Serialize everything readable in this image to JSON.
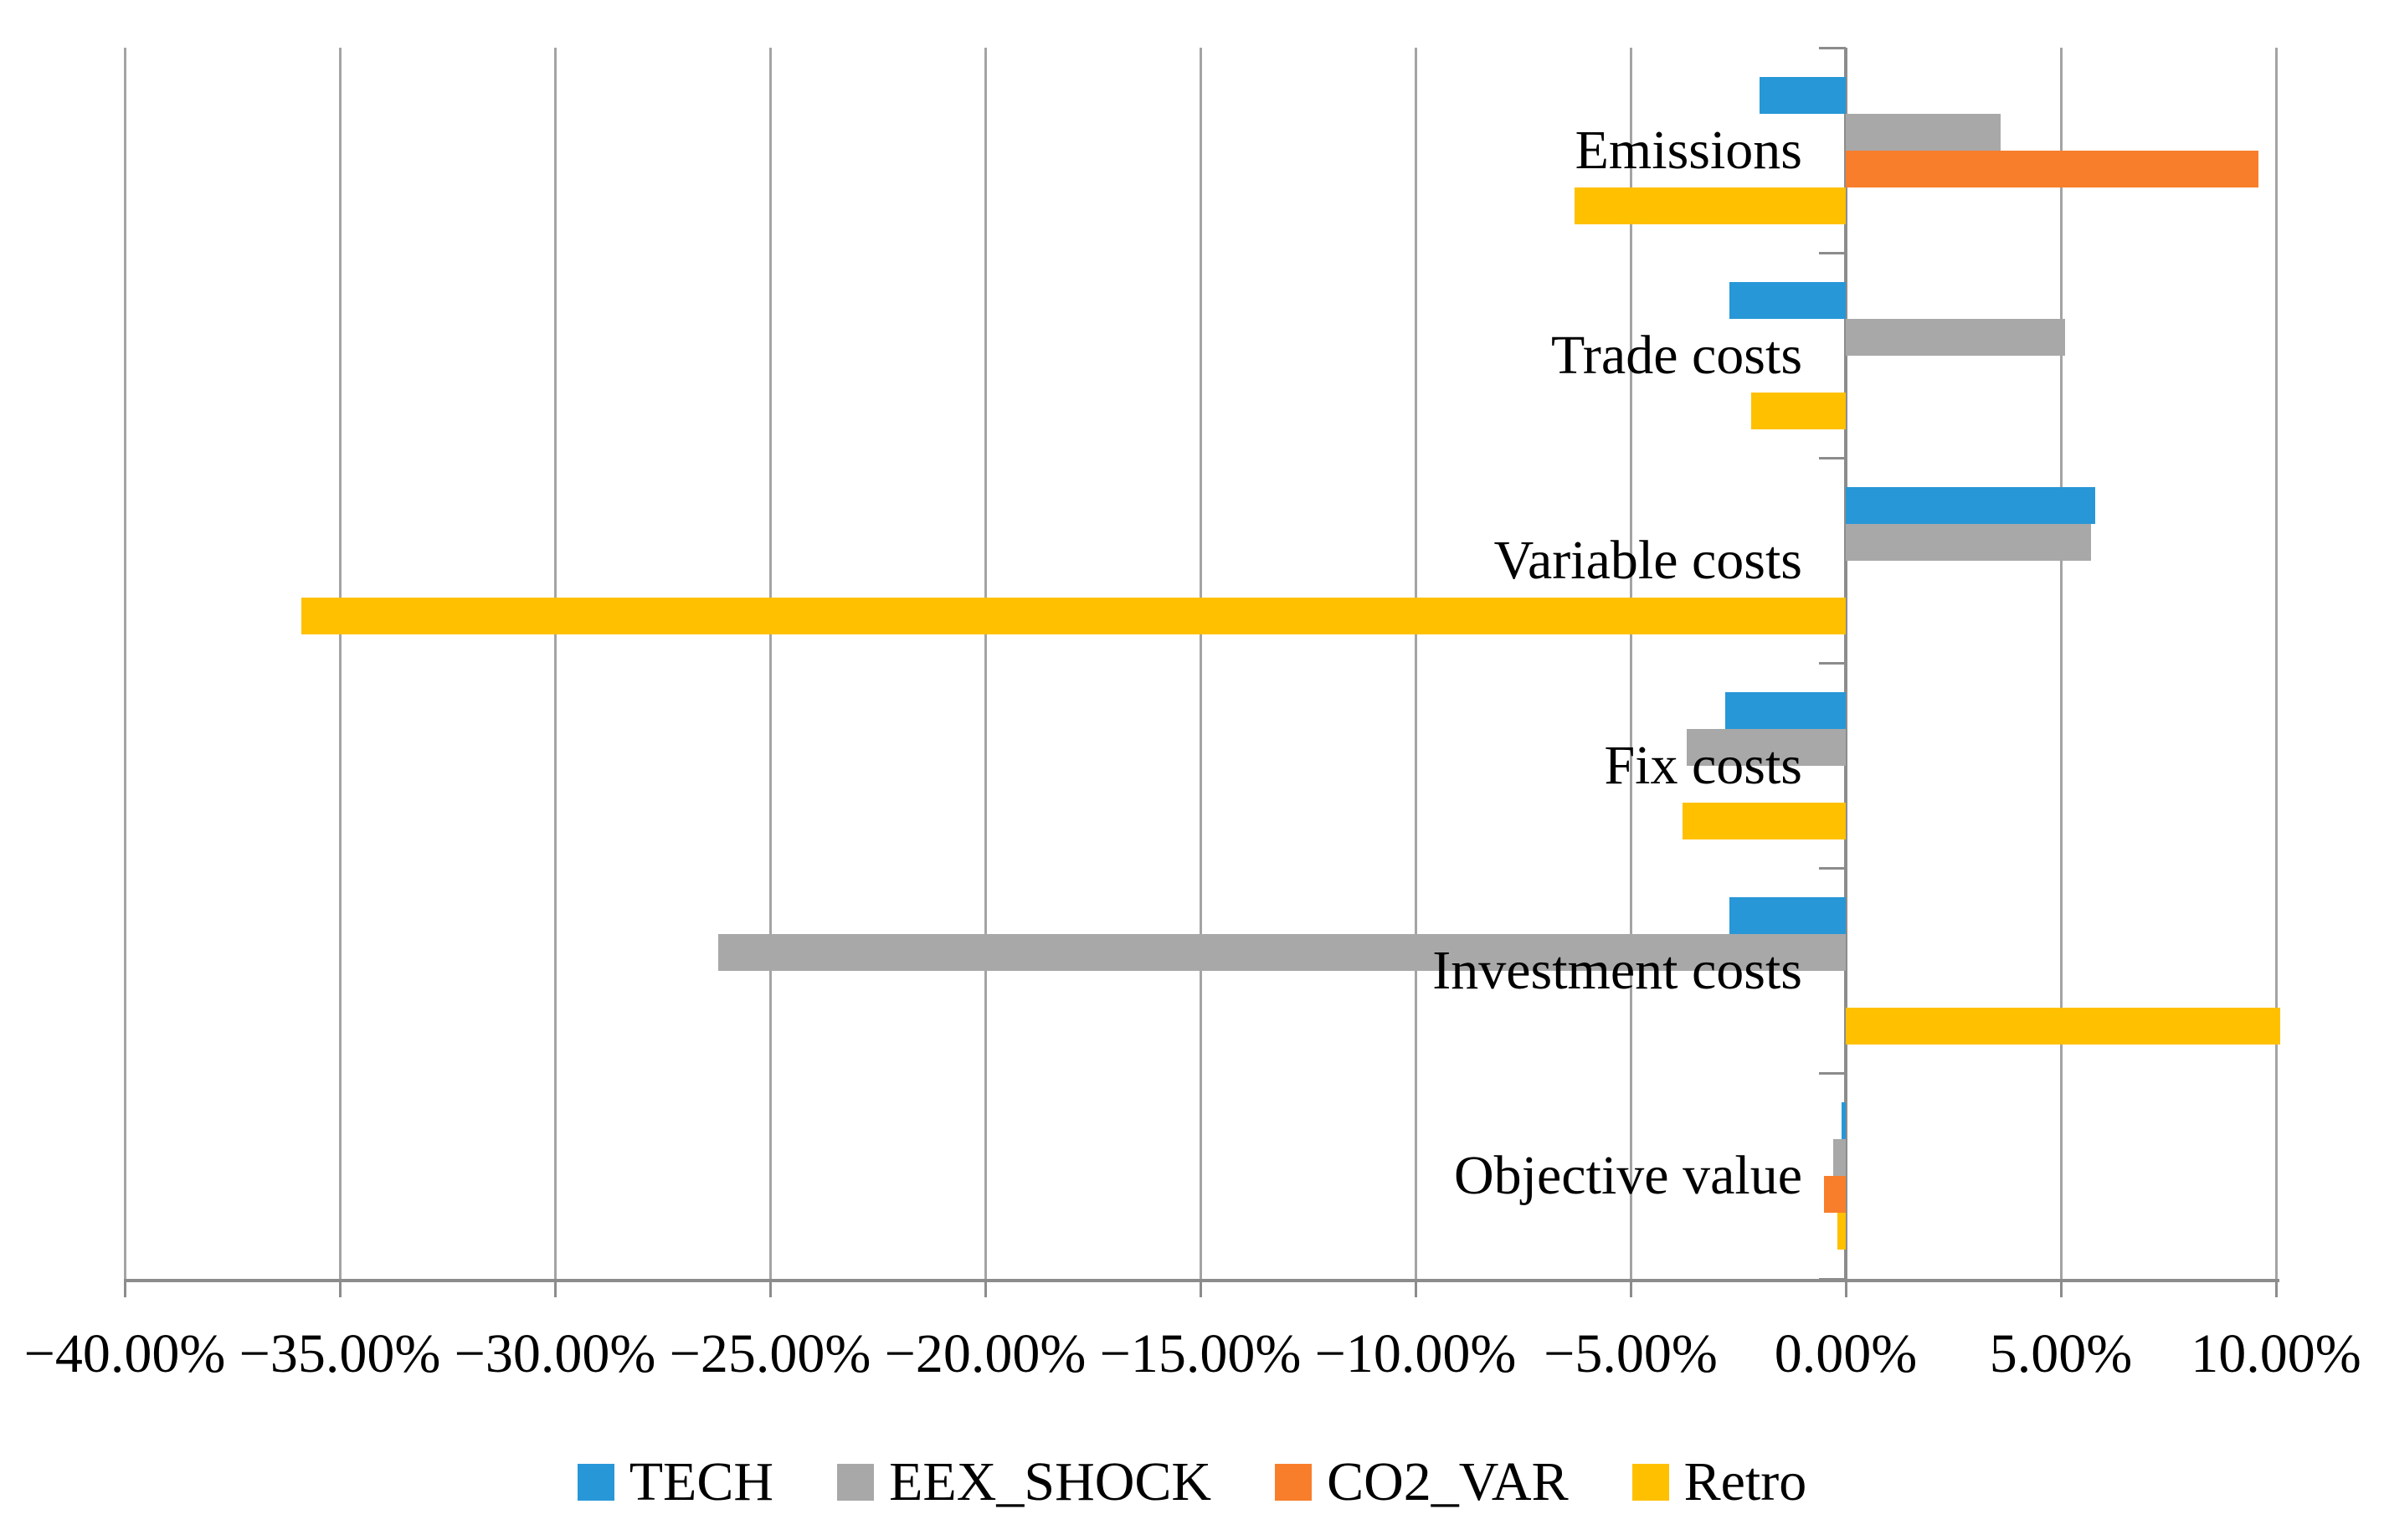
{
  "chart_data": {
    "type": "bar",
    "orientation": "horizontal",
    "title": "",
    "xlabel": "",
    "ylabel": "",
    "categories": [
      "Emissions",
      "Trade costs",
      "Variable costs",
      "Fix costs",
      "Investment costs",
      "Objective value"
    ],
    "series": [
      {
        "name": "TECH",
        "color": "#2797D7",
        "values": [
          -2.0,
          -2.7,
          5.8,
          -2.8,
          -2.7,
          -0.1
        ]
      },
      {
        "name": "EEX_SHOCK",
        "color": "#A8A8A8",
        "values": [
          3.6,
          5.1,
          5.7,
          -3.7,
          -26.2,
          -0.3
        ]
      },
      {
        "name": "CO2_VAR",
        "color": "#F87E2B",
        "values": [
          9.6,
          0.0,
          0.0,
          0.0,
          0.0,
          -0.5
        ]
      },
      {
        "name": "Retro",
        "color": "#FFC000",
        "values": [
          -6.3,
          -2.2,
          -35.9,
          -3.8,
          10.1,
          -0.2
        ]
      }
    ],
    "x_axis": {
      "min": -40,
      "max": 10,
      "step": 5,
      "unit": "%",
      "tick_labels": [
        "−40.00%",
        "−35.00%",
        "−30.00%",
        "−25.00%",
        "−20.00%",
        "−15.00%",
        "−10.00%",
        "−5.00%",
        "0.00%",
        "5.00%",
        "10.00%"
      ]
    },
    "legend": {
      "position": "bottom",
      "entries": [
        "TECH",
        "EEX_SHOCK",
        "CO2_VAR",
        "Retro"
      ]
    },
    "grid": true
  }
}
